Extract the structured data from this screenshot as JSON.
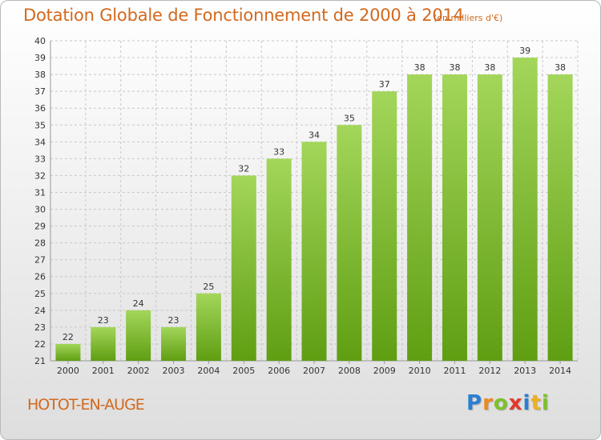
{
  "header": {
    "title": "Dotation Globale de Fonctionnement de 2000 à 2014",
    "subtitle": "(en milliers d'€)"
  },
  "footer": {
    "place": "HOTOT-EN-AUGE",
    "logo_letters": [
      {
        "ch": "P",
        "color": "#2a7fd4"
      },
      {
        "ch": "r",
        "color": "#f08a1c"
      },
      {
        "ch": "o",
        "color": "#7cc22a"
      },
      {
        "ch": "x",
        "color": "#e23a2a"
      },
      {
        "ch": "i",
        "color": "#2a7fd4"
      },
      {
        "ch": "t",
        "color": "#f0b01c"
      },
      {
        "ch": "i",
        "color": "#7cc22a"
      }
    ]
  },
  "colors": {
    "accent_text": "#d2691e",
    "bar_light": "#a3d65a",
    "bar_dark": "#5f9e12",
    "grid": "#c8c8c8"
  },
  "chart_data": {
    "type": "bar",
    "title": "Dotation Globale de Fonctionnement de 2000 à 2014",
    "subtitle": "(en milliers d'€)",
    "xlabel": "",
    "ylabel": "",
    "categories": [
      "2000",
      "2001",
      "2002",
      "2003",
      "2004",
      "2005",
      "2006",
      "2007",
      "2008",
      "2009",
      "2010",
      "2011",
      "2012",
      "2013",
      "2014"
    ],
    "values": [
      22,
      23,
      24,
      23,
      25,
      32,
      33,
      34,
      35,
      37,
      38,
      38,
      38,
      39,
      38
    ],
    "ylim": [
      21,
      40
    ],
    "yticks": [
      21,
      22,
      23,
      24,
      25,
      26,
      27,
      28,
      29,
      30,
      31,
      32,
      33,
      34,
      35,
      36,
      37,
      38,
      39,
      40
    ],
    "grid": true,
    "data_labels": true
  }
}
